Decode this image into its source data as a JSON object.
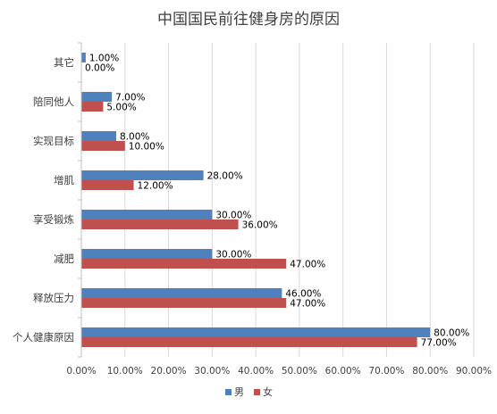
{
  "chart_data": {
    "type": "bar",
    "orientation": "horizontal",
    "title": "中国国民前往健身房的原因",
    "xlabel": "",
    "ylabel": "",
    "categories": [
      "其它",
      "陪同他人",
      "实现目标",
      "增肌",
      "享受锻炼",
      "减肥",
      "释放压力",
      "个人健康原因"
    ],
    "series": [
      {
        "name": "男",
        "values": [
          1.0,
          7.0,
          8.0,
          28.0,
          30.0,
          30.0,
          46.0,
          80.0
        ]
      },
      {
        "name": "女",
        "values": [
          0.0,
          5.0,
          10.0,
          12.0,
          36.0,
          47.0,
          47.0,
          77.0
        ]
      }
    ],
    "data_labels": {
      "男": [
        "1.00%",
        "7.00%",
        "8.00%",
        "28.00%",
        "30.00%",
        "30.00%",
        "46.00%",
        "80.00%"
      ],
      "女": [
        "0.00%",
        "5.00%",
        "10.00%",
        "12.00%",
        "36.00%",
        "47.00%",
        "47.00%",
        "77.00%"
      ]
    },
    "xlim": [
      0,
      90
    ],
    "xticks": [
      0,
      10,
      20,
      30,
      40,
      50,
      60,
      70,
      80,
      90
    ],
    "xtick_labels": [
      "0.00%",
      "10.00%",
      "20.00%",
      "30.00%",
      "40.00%",
      "50.00%",
      "60.00%",
      "70.00%",
      "80.00%",
      "90.00%"
    ],
    "grid": true,
    "legend_position": "bottom",
    "colors": {
      "男": "#4f81bd",
      "女": "#c0504d",
      "grid": "#d9d9d9",
      "axis": "#bfbfbf",
      "text": "#404040"
    }
  }
}
